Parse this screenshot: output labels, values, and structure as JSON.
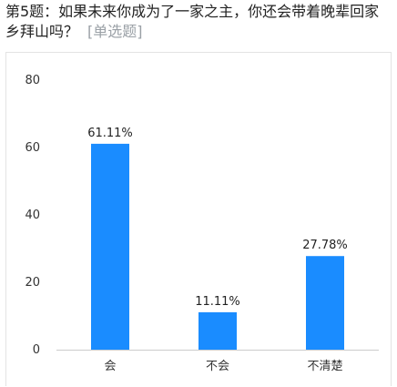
{
  "question": {
    "text": "第5题：如果未来你成为了一家之主，你还会带着晚辈回家乡拜山吗？",
    "type_tag": "[单选题]"
  },
  "colors": {
    "bar": "#1a8cff",
    "axis": "#cccccc"
  },
  "chart_data": {
    "type": "bar",
    "categories": [
      "会",
      "不会",
      "不清楚"
    ],
    "values": [
      61.11,
      11.11,
      27.78
    ],
    "value_labels": [
      "61.11%",
      "11.11%",
      "27.78%"
    ],
    "ylim": [
      0,
      80
    ],
    "yticks": [
      0,
      20,
      40,
      60,
      80
    ],
    "grid": false
  }
}
